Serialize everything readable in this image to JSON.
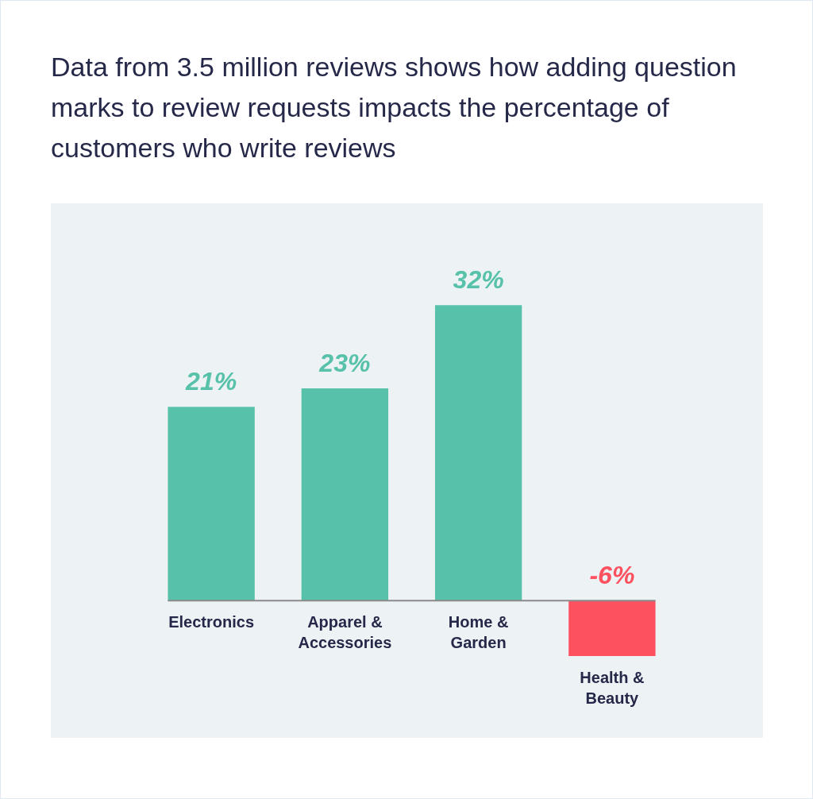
{
  "chart_data": {
    "type": "bar",
    "title": "Data from 3.5 million reviews shows how adding question marks to review requests impacts the percentage of customers who write reviews",
    "categories": [
      "Electronics",
      "Apparel & Accessories",
      "Home & Garden",
      "Health & Beauty"
    ],
    "values": [
      21,
      23,
      32,
      -6
    ],
    "colors": [
      "#57c1a9",
      "#57c1a9",
      "#57c1a9",
      "#fe5160"
    ],
    "value_labels": [
      "21%",
      "23%",
      "32%",
      "-6%"
    ],
    "legend": false
  }
}
